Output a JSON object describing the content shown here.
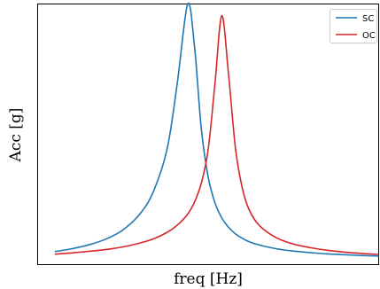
{
  "chart_data": {
    "type": "line",
    "title": "",
    "xlabel": "freq [Hz]",
    "ylabel": "Acc [g]",
    "xlim": [
      0,
      1
    ],
    "ylim": [
      0,
      1
    ],
    "grid": false,
    "ticks": "none",
    "legend": "top-right",
    "x": [
      0.05,
      0.1,
      0.15,
      0.2,
      0.25,
      0.3,
      0.34,
      0.38,
      0.41,
      0.44,
      0.46,
      0.48,
      0.5,
      0.52,
      0.54,
      0.56,
      0.58,
      0.6,
      0.62,
      0.65,
      0.7,
      0.75,
      0.8,
      0.85,
      0.9,
      0.95,
      1.0
    ],
    "series": [
      {
        "name": "SC",
        "color": "#1f77b4",
        "values": [
          0.05,
          0.061,
          0.076,
          0.098,
          0.133,
          0.195,
          0.282,
          0.446,
          0.701,
          1.0,
          0.837,
          0.52,
          0.336,
          0.237,
          0.179,
          0.143,
          0.118,
          0.101,
          0.088,
          0.075,
          0.061,
          0.052,
          0.046,
          0.041,
          0.038,
          0.035,
          0.033
        ]
      },
      {
        "name": "OC",
        "color": "#d62728",
        "values": [
          0.04,
          0.045,
          0.051,
          0.058,
          0.068,
          0.083,
          0.099,
          0.124,
          0.152,
          0.194,
          0.24,
          0.313,
          0.441,
          0.695,
          0.955,
          0.727,
          0.447,
          0.294,
          0.211,
          0.15,
          0.103,
          0.079,
          0.065,
          0.055,
          0.048,
          0.043,
          0.039
        ]
      }
    ]
  }
}
